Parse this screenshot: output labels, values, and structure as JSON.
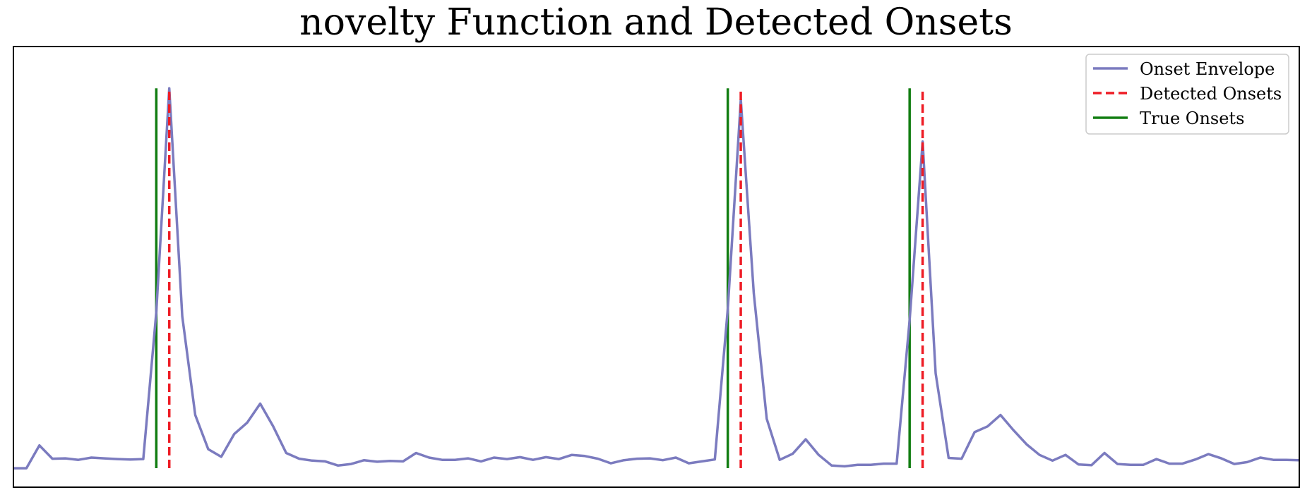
{
  "chart_data": {
    "type": "line",
    "title": "novelty Function and Detected Onsets",
    "xlabel": "",
    "ylabel": "",
    "xlim": [
      0,
      99
    ],
    "ylim": [
      -0.05,
      1.11
    ],
    "grid": false,
    "legend_position": "top-right",
    "axis_ticks_visible": false,
    "colors": {
      "envelope": "#7b7bbf",
      "detected": "#ee1c25",
      "true": "#117d11"
    },
    "series": [
      {
        "name": "Onset Envelope",
        "style": "solid",
        "x": [
          0,
          1,
          2,
          3,
          4,
          5,
          6,
          7,
          8,
          9,
          10,
          11,
          12,
          13,
          14,
          15,
          16,
          17,
          18,
          19,
          20,
          21,
          22,
          23,
          24,
          25,
          26,
          27,
          28,
          29,
          30,
          31,
          32,
          33,
          34,
          35,
          36,
          37,
          38,
          39,
          40,
          41,
          42,
          43,
          44,
          45,
          46,
          47,
          48,
          49,
          50,
          51,
          52,
          53,
          54,
          55,
          56,
          57,
          58,
          59,
          60,
          61,
          62,
          63,
          64,
          65,
          66,
          67,
          68,
          69,
          70,
          71,
          72,
          73,
          74,
          75,
          76,
          77,
          78,
          79,
          80,
          81,
          82,
          83,
          84,
          85,
          86,
          87,
          88,
          89,
          90,
          91,
          92,
          93,
          94,
          95,
          96,
          97,
          98,
          99
        ],
        "y": [
          0.0,
          0.0,
          0.06,
          0.025,
          0.026,
          0.022,
          0.028,
          0.026,
          0.024,
          0.023,
          0.024,
          0.41,
          1.0,
          0.4,
          0.14,
          0.05,
          0.03,
          0.09,
          0.12,
          0.17,
          0.11,
          0.04,
          0.025,
          0.02,
          0.018,
          0.007,
          0.011,
          0.021,
          0.017,
          0.019,
          0.018,
          0.04,
          0.028,
          0.022,
          0.022,
          0.026,
          0.018,
          0.028,
          0.024,
          0.029,
          0.022,
          0.029,
          0.024,
          0.035,
          0.032,
          0.025,
          0.013,
          0.021,
          0.025,
          0.026,
          0.021,
          0.028,
          0.013,
          0.018,
          0.023,
          0.42,
          0.97,
          0.46,
          0.13,
          0.022,
          0.038,
          0.076,
          0.035,
          0.007,
          0.005,
          0.009,
          0.009,
          0.012,
          0.012,
          0.39,
          0.86,
          0.25,
          0.027,
          0.025,
          0.095,
          0.11,
          0.14,
          0.1,
          0.063,
          0.035,
          0.02,
          0.035,
          0.01,
          0.008,
          0.04,
          0.011,
          0.009,
          0.009,
          0.024,
          0.012,
          0.012,
          0.023,
          0.037,
          0.026,
          0.011,
          0.016,
          0.028,
          0.022,
          0.022,
          0.021
        ]
      },
      {
        "name": "Detected Onsets",
        "style": "dashed",
        "x": [
          12,
          56,
          70
        ]
      },
      {
        "name": "True Onsets",
        "style": "solid",
        "x": [
          11,
          55,
          69
        ]
      }
    ],
    "vline_range": [
      0,
      1.0
    ]
  }
}
